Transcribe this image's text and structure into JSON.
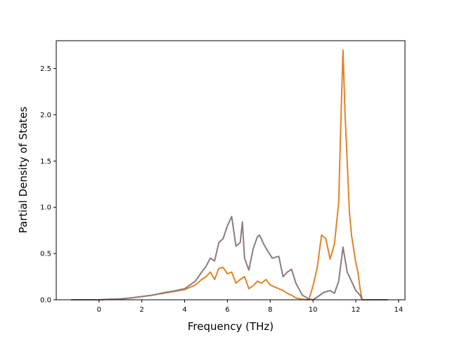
{
  "chart_data": {
    "type": "line",
    "xlabel": "Frequency (THz)",
    "ylabel": "Partial Density of States",
    "xlim": [
      -2.0,
      14.3
    ],
    "ylim": [
      0,
      2.8
    ],
    "xticks": [
      0,
      2,
      4,
      6,
      8,
      10,
      12,
      14
    ],
    "yticks": [
      0.0,
      0.5,
      1.0,
      1.5,
      2.0,
      2.5
    ],
    "xtick_labels": [
      "0",
      "2",
      "4",
      "6",
      "8",
      "10",
      "12",
      "14"
    ],
    "ytick_labels": [
      "0.0",
      "0.5",
      "1.0",
      "1.5",
      "2.0",
      "2.5"
    ],
    "grid": false,
    "legend": false,
    "series": [
      {
        "color": "#e08428",
        "x": [
          -1.3,
          0.0,
          0.5,
          1.0,
          1.5,
          2.0,
          2.5,
          3.0,
          3.5,
          4.0,
          4.5,
          4.8,
          5.0,
          5.2,
          5.4,
          5.6,
          5.8,
          6.0,
          6.2,
          6.4,
          6.6,
          6.8,
          7.0,
          7.2,
          7.4,
          7.6,
          7.8,
          8.0,
          8.2,
          8.4,
          8.6,
          8.8,
          9.0,
          9.2,
          9.5,
          9.8,
          10.0,
          10.2,
          10.4,
          10.6,
          10.8,
          11.0,
          11.2,
          11.3,
          11.4,
          11.5,
          11.6,
          11.7,
          11.8,
          12.0,
          12.1,
          12.2,
          12.3,
          13.5
        ],
        "y": [
          0.0,
          0.0,
          0.005,
          0.01,
          0.02,
          0.035,
          0.05,
          0.07,
          0.09,
          0.11,
          0.16,
          0.22,
          0.25,
          0.3,
          0.22,
          0.34,
          0.35,
          0.28,
          0.3,
          0.18,
          0.22,
          0.25,
          0.12,
          0.15,
          0.2,
          0.18,
          0.22,
          0.16,
          0.14,
          0.12,
          0.1,
          0.07,
          0.05,
          0.02,
          0.005,
          0.0,
          0.15,
          0.35,
          0.7,
          0.66,
          0.44,
          0.6,
          1.05,
          1.9,
          2.7,
          2.0,
          1.5,
          0.95,
          0.7,
          0.4,
          0.3,
          0.12,
          0.0,
          0.0
        ]
      },
      {
        "color": "#8c7b80",
        "x": [
          -1.3,
          0.0,
          0.5,
          1.0,
          1.5,
          2.0,
          2.5,
          3.0,
          3.5,
          4.0,
          4.5,
          4.8,
          5.0,
          5.2,
          5.4,
          5.6,
          5.8,
          6.0,
          6.2,
          6.4,
          6.6,
          6.7,
          6.8,
          7.0,
          7.2,
          7.4,
          7.5,
          7.7,
          7.9,
          8.1,
          8.4,
          8.6,
          8.8,
          9.0,
          9.2,
          9.5,
          9.8,
          10.0,
          10.2,
          10.5,
          10.8,
          11.0,
          11.2,
          11.4,
          11.6,
          11.8,
          12.0,
          12.2,
          12.3,
          13.5
        ],
        "y": [
          0.0,
          0.0,
          0.005,
          0.01,
          0.02,
          0.035,
          0.05,
          0.075,
          0.095,
          0.12,
          0.2,
          0.3,
          0.36,
          0.45,
          0.42,
          0.62,
          0.66,
          0.8,
          0.9,
          0.58,
          0.62,
          0.84,
          0.45,
          0.32,
          0.55,
          0.68,
          0.7,
          0.6,
          0.52,
          0.45,
          0.47,
          0.25,
          0.3,
          0.33,
          0.18,
          0.05,
          0.01,
          0.0,
          0.03,
          0.08,
          0.1,
          0.07,
          0.2,
          0.57,
          0.3,
          0.2,
          0.1,
          0.05,
          0.0,
          0.0
        ]
      }
    ]
  }
}
